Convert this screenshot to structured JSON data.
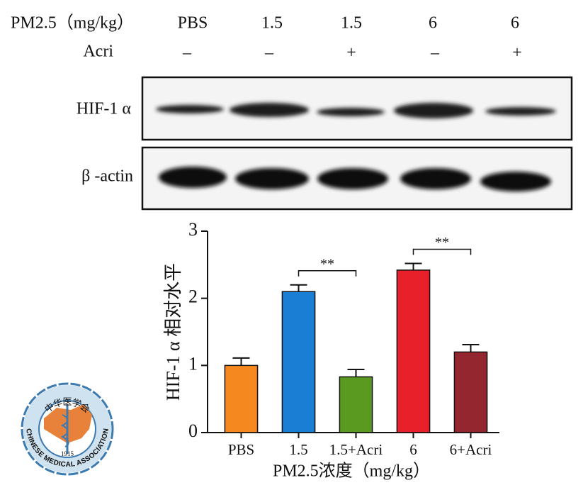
{
  "blot": {
    "header": {
      "dose_label": "PM2.5（mg/kg）",
      "doses": [
        "PBS",
        "1.5",
        "1.5",
        "6",
        "6"
      ],
      "treatment_label": "Acri",
      "treatment": [
        "–",
        "–",
        "+",
        "–",
        "+"
      ]
    },
    "rows": [
      "HIF-1 α",
      "β -actin"
    ]
  },
  "chart_data": {
    "type": "bar",
    "categories": [
      "PBS",
      "1.5",
      "1.5+Acri",
      "6",
      "6+Acri"
    ],
    "values": [
      1.0,
      2.1,
      0.83,
      2.42,
      1.2
    ],
    "errors": [
      0.11,
      0.1,
      0.11,
      0.1,
      0.11
    ],
    "colors": [
      "#f5891f",
      "#1a7fd4",
      "#5a9a20",
      "#e8202a",
      "#93262f"
    ],
    "ylim": [
      0,
      3
    ],
    "yticks": [
      0,
      1,
      2,
      3
    ],
    "y_label": "HIF-1 α 相对水平",
    "x_label": "PM2.5浓度（mg/kg）",
    "annotations": [
      {
        "text": "**",
        "between": [
          "1.5",
          "1.5+Acri"
        ]
      },
      {
        "text": "**",
        "between": [
          "6",
          "6+Acri"
        ]
      }
    ]
  },
  "logo": {
    "name_zh": "中华医学会",
    "name_en": "CHINESE MEDICAL ASSOCIATION",
    "year": "1915"
  }
}
